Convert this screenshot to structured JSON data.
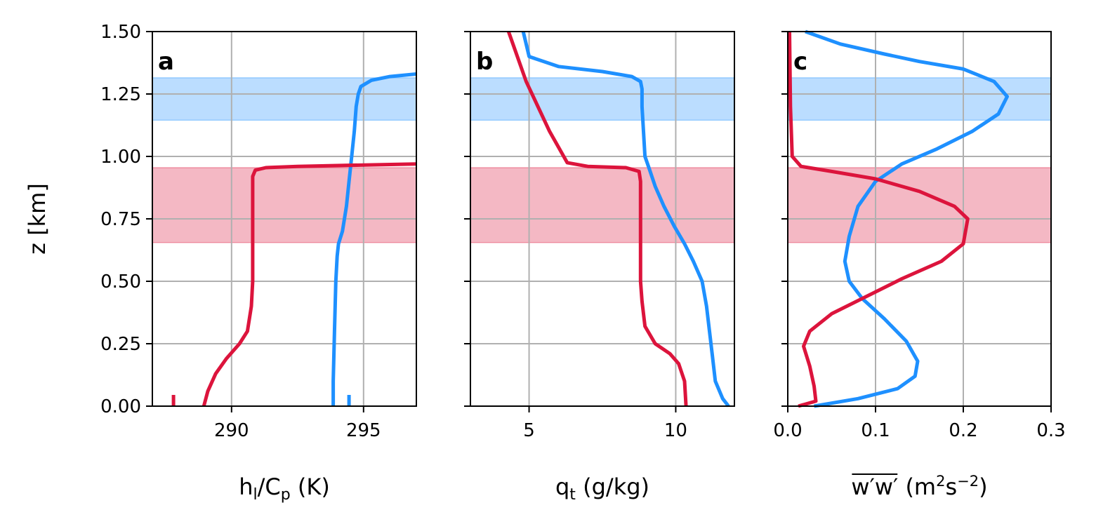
{
  "chart_data": [
    {
      "type": "line",
      "panel_label": "a",
      "xlabel_main": "h",
      "xlabel_sub1": "l",
      "xlabel_mid": "/C",
      "xlabel_sub2": "p",
      "xlabel_unit": " (K)",
      "ylabel": "z [km]",
      "xlim": [
        287,
        297
      ],
      "ylim": [
        0,
        1.5
      ],
      "xticks": [
        290,
        295
      ],
      "yticks": [
        0,
        0.25,
        0.5,
        0.75,
        1.0,
        1.25,
        1.5
      ],
      "ytick_labels": [
        "0.00",
        "0.25",
        "0.50",
        "0.75",
        "1.00",
        "1.25",
        "1.50"
      ],
      "grid": true,
      "bands": [
        {
          "ylim": [
            1.145,
            1.315
          ],
          "color": "#1e90ff",
          "alpha": 0.3
        },
        {
          "ylim": [
            0.655,
            0.955
          ],
          "color": "#dc143c",
          "alpha": 0.3
        }
      ],
      "series": [
        {
          "color": "#1e90ff",
          "x": [
            293.85,
            293.85,
            293.9,
            293.95,
            294.0,
            294.05,
            294.2,
            294.35,
            294.45,
            294.55,
            294.65,
            294.72,
            294.8,
            294.9,
            295.3,
            296.0,
            297.0
          ],
          "y": [
            0.0,
            0.1,
            0.3,
            0.5,
            0.6,
            0.65,
            0.7,
            0.8,
            0.9,
            1.0,
            1.1,
            1.2,
            1.25,
            1.28,
            1.305,
            1.32,
            1.33
          ]
        },
        {
          "color": "#dc143c",
          "x": [
            288.95,
            289.1,
            289.4,
            289.8,
            290.3,
            290.6,
            290.75,
            290.8,
            290.8,
            290.8,
            290.8,
            290.9,
            291.3,
            292.5,
            297.0
          ],
          "y": [
            0.0,
            0.06,
            0.13,
            0.19,
            0.25,
            0.3,
            0.4,
            0.5,
            0.7,
            0.85,
            0.92,
            0.945,
            0.955,
            0.96,
            0.97
          ]
        },
        {
          "color": "#1e90ff",
          "x": [
            294.45,
            294.45
          ],
          "y": [
            0.0,
            0.045
          ]
        },
        {
          "color": "#dc143c",
          "x": [
            287.8,
            287.8
          ],
          "y": [
            0.0,
            0.045
          ]
        }
      ]
    },
    {
      "type": "line",
      "panel_label": "b",
      "xlabel_main": "q",
      "xlabel_sub1": "t",
      "xlabel_mid": "",
      "xlabel_sub2": "",
      "xlabel_unit": " (g/kg)",
      "xlim": [
        3,
        12
      ],
      "ylim": [
        0,
        1.5
      ],
      "xticks": [
        5,
        10
      ],
      "yticks": [
        0,
        0.25,
        0.5,
        0.75,
        1.0,
        1.25,
        1.5
      ],
      "grid": true,
      "bands": [
        {
          "ylim": [
            1.145,
            1.315
          ],
          "color": "#1e90ff",
          "alpha": 0.3
        },
        {
          "ylim": [
            0.655,
            0.955
          ],
          "color": "#dc143c",
          "alpha": 0.3
        }
      ],
      "series": [
        {
          "color": "#1e90ff",
          "x": [
            11.8,
            11.6,
            11.35,
            11.25,
            11.15,
            11.05,
            10.9,
            10.6,
            10.3,
            9.95,
            9.6,
            9.3,
            9.1,
            8.95,
            8.9,
            8.85,
            8.85,
            8.8,
            8.5,
            7.5,
            6.0,
            5.0,
            4.8
          ],
          "y": [
            0.0,
            0.03,
            0.1,
            0.2,
            0.3,
            0.4,
            0.5,
            0.58,
            0.65,
            0.72,
            0.8,
            0.88,
            0.95,
            1.0,
            1.1,
            1.2,
            1.27,
            1.3,
            1.32,
            1.34,
            1.36,
            1.4,
            1.5
          ]
        },
        {
          "color": "#dc143c",
          "x": [
            10.35,
            10.3,
            10.1,
            9.8,
            9.3,
            8.95,
            8.85,
            8.8,
            8.8,
            8.8,
            8.75,
            8.3,
            7.0,
            6.3,
            5.7,
            4.9,
            4.3
          ],
          "y": [
            0.0,
            0.1,
            0.17,
            0.21,
            0.25,
            0.32,
            0.42,
            0.5,
            0.7,
            0.9,
            0.94,
            0.955,
            0.96,
            0.975,
            1.1,
            1.3,
            1.5
          ]
        }
      ]
    },
    {
      "type": "line",
      "panel_label": "c",
      "xlabel_main": "w′w′",
      "xlabel_unit_pre": " (m",
      "xlabel_sup1": "2",
      "xlabel_unit_mid": "s",
      "xlabel_sup2": "−2",
      "xlabel_unit_post": ")",
      "xlim": [
        0,
        0.3
      ],
      "ylim": [
        0,
        1.5
      ],
      "xticks": [
        0.0,
        0.1,
        0.2,
        0.3
      ],
      "xtick_labels": [
        "0.0",
        "0.1",
        "0.2",
        "0.3"
      ],
      "yticks": [
        0,
        0.25,
        0.5,
        0.75,
        1.0,
        1.25,
        1.5
      ],
      "grid": true,
      "bands": [
        {
          "ylim": [
            1.145,
            1.315
          ],
          "color": "#1e90ff",
          "alpha": 0.3
        },
        {
          "ylim": [
            0.655,
            0.955
          ],
          "color": "#dc143c",
          "alpha": 0.3
        }
      ],
      "series": [
        {
          "color": "#1e90ff",
          "x": [
            0.03,
            0.08,
            0.125,
            0.145,
            0.148,
            0.135,
            0.11,
            0.085,
            0.07,
            0.065,
            0.07,
            0.08,
            0.1,
            0.13,
            0.17,
            0.21,
            0.24,
            0.25,
            0.235,
            0.2,
            0.15,
            0.11,
            0.06,
            0.02
          ],
          "y": [
            0.0,
            0.03,
            0.07,
            0.12,
            0.18,
            0.26,
            0.35,
            0.43,
            0.5,
            0.58,
            0.68,
            0.8,
            0.9,
            0.97,
            1.03,
            1.1,
            1.17,
            1.24,
            1.3,
            1.35,
            1.38,
            1.41,
            1.45,
            1.5
          ]
        },
        {
          "color": "#dc143c",
          "x": [
            0.012,
            0.032,
            0.03,
            0.025,
            0.018,
            0.025,
            0.05,
            0.09,
            0.13,
            0.175,
            0.2,
            0.205,
            0.19,
            0.15,
            0.1,
            0.05,
            0.015,
            0.005,
            0.003,
            0.002
          ],
          "y": [
            0.0,
            0.02,
            0.08,
            0.16,
            0.24,
            0.3,
            0.37,
            0.44,
            0.51,
            0.58,
            0.65,
            0.75,
            0.8,
            0.86,
            0.91,
            0.94,
            0.96,
            1.0,
            1.2,
            1.5
          ]
        }
      ]
    }
  ]
}
